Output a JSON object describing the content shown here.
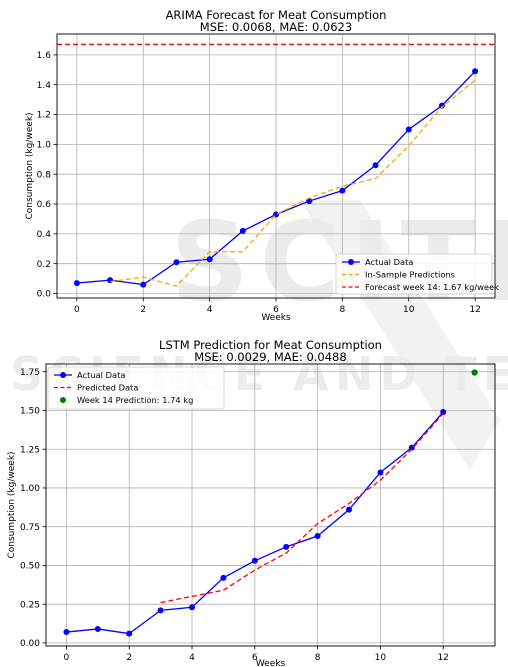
{
  "chart_data": [
    {
      "type": "line",
      "title": "ARIMA Forecast for Meat Consumption",
      "subtitle": "MSE: 0.0068, MAE: 0.0623",
      "xlabel": "Weeks",
      "ylabel": "Consumption (kg/week)",
      "xlim": [
        -0.6,
        12.6
      ],
      "ylim": [
        -0.03,
        1.74
      ],
      "x_ticks": [
        0,
        2,
        4,
        6,
        8,
        10,
        12
      ],
      "y_ticks": [
        0.0,
        0.2,
        0.4,
        0.6,
        0.8,
        1.0,
        1.2,
        1.4,
        1.6
      ],
      "grid": true,
      "legend_position": "lower-right",
      "series": [
        {
          "name": "Actual Data",
          "style": "solid-markers",
          "color": "#0000ff",
          "x": [
            0,
            1,
            2,
            3,
            4,
            5,
            6,
            7,
            8,
            9,
            10,
            11,
            12
          ],
          "y": [
            0.07,
            0.09,
            0.06,
            0.21,
            0.23,
            0.42,
            0.53,
            0.62,
            0.69,
            0.86,
            1.1,
            1.26,
            1.49
          ]
        },
        {
          "name": "In-Sample Predictions",
          "style": "dashed",
          "color": "#ffa500",
          "x": [
            1,
            2,
            3,
            4,
            5,
            6,
            7,
            8,
            9,
            10,
            11,
            12
          ],
          "y": [
            0.08,
            0.11,
            0.05,
            0.28,
            0.28,
            0.53,
            0.64,
            0.72,
            0.77,
            0.99,
            1.25,
            1.43
          ]
        },
        {
          "name": "Forecast week 14: 1.67 kg/week",
          "style": "dashed-hline",
          "color": "#ff0000",
          "y": 1.67
        }
      ]
    },
    {
      "type": "line",
      "title": "LSTM Prediction for Meat Consumption",
      "subtitle": "MSE: 0.0029, MAE: 0.0488",
      "xlabel": "Weeks",
      "ylabel": "Consumption (kg/week)",
      "xlim": [
        -0.65,
        13.65
      ],
      "ylim": [
        -0.02,
        1.8
      ],
      "x_ticks": [
        0,
        2,
        4,
        6,
        8,
        10,
        12
      ],
      "y_ticks": [
        0.0,
        0.25,
        0.5,
        0.75,
        1.0,
        1.25,
        1.5,
        1.75
      ],
      "y_tick_format": "2dp",
      "grid": true,
      "legend_position": "top-left",
      "series": [
        {
          "name": "Actual Data",
          "style": "solid-markers",
          "color": "#0000ff",
          "x": [
            0,
            1,
            2,
            3,
            4,
            5,
            6,
            7,
            8,
            9,
            10,
            11,
            12
          ],
          "y": [
            0.07,
            0.09,
            0.06,
            0.21,
            0.23,
            0.42,
            0.53,
            0.62,
            0.69,
            0.86,
            1.1,
            1.26,
            1.49
          ]
        },
        {
          "name": "Predicted Data",
          "style": "dashed",
          "color": "#ff0000",
          "x": [
            3,
            4,
            5,
            6,
            7,
            8,
            9,
            10,
            11,
            12
          ],
          "y": [
            0.26,
            0.3,
            0.34,
            0.47,
            0.58,
            0.77,
            0.9,
            1.05,
            1.25,
            1.48
          ]
        },
        {
          "name": "Week 14 Prediction: 1.74 kg",
          "style": "point",
          "color": "#008000",
          "x": [
            13
          ],
          "y": [
            1.745
          ]
        }
      ]
    }
  ]
}
